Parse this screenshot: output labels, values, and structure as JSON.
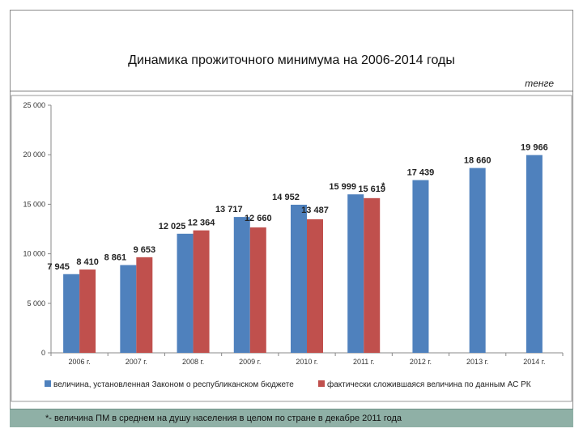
{
  "header": {
    "title": "Динамика прожиточного минимума на 2006-2014 годы",
    "unit": "тенге"
  },
  "footer": {
    "note": "*- величина ПМ в среднем на душу населения в целом по стране в декабре 2011 года"
  },
  "chart_data": {
    "type": "bar",
    "categories": [
      "2006 г.",
      "2007 г.",
      "2008 г.",
      "2009 г.",
      "2010 г.",
      "2011 г.",
      "2012 г.",
      "2013 г.",
      "2014 г."
    ],
    "ylim": [
      0,
      25000
    ],
    "yticks": [
      0,
      5000,
      10000,
      15000,
      20000,
      25000
    ],
    "ytick_labels": [
      "0",
      "5 000",
      "10 000",
      "15 000",
      "20 000",
      "25 000"
    ],
    "grid": false,
    "legend_position": "bottom",
    "series": [
      {
        "name": "величина, установленная Законом о республиканском бюджете",
        "color": "#4f81bd",
        "values": [
          7945,
          8861,
          12025,
          13717,
          14952,
          15999,
          17439,
          18660,
          19966
        ],
        "labels": [
          "7 945",
          "8 861",
          "12 025",
          "13 717",
          "14 952",
          "15 999",
          "17 439",
          "18 660",
          "19 966"
        ]
      },
      {
        "name": "фактически сложившаяся величина по данным АС РК",
        "color": "#c0504d",
        "values": [
          8410,
          9653,
          12364,
          12660,
          13487,
          15619,
          null,
          null,
          null
        ],
        "labels": [
          "8 410",
          "9 653",
          "12 364",
          "12 660",
          "13 487",
          "15 619",
          null,
          null,
          null
        ]
      }
    ],
    "annotations": [
      {
        "text": "*",
        "category": "2011 г.",
        "series": 1
      }
    ]
  }
}
